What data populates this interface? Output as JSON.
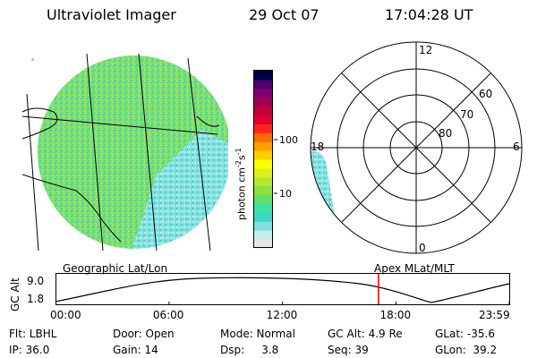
{
  "header": {
    "instrument": "Ultraviolet Imager",
    "date": "29 Oct 07",
    "time": "17:04:28 UT"
  },
  "colorbar": {
    "unit": "photon cm",
    "exp1": "-2",
    "mid": "s",
    "exp2": "-1",
    "ticks": [
      {
        "label": "100",
        "value": 100
      },
      {
        "label": "10",
        "value": 10
      }
    ],
    "colors": [
      "#e6e6e6",
      "#c8ecec",
      "#7fe0e0",
      "#3cd6c8",
      "#40e0a0",
      "#60e070",
      "#8ce040",
      "#b4e830",
      "#dcf020",
      "#ffff00",
      "#ffd000",
      "#ffa000",
      "#ff6a00",
      "#ff2020",
      "#e00030",
      "#c0003a",
      "#a00050",
      "#800070",
      "#500070",
      "#000040"
    ]
  },
  "polar": {
    "mlt_labels": {
      "top": "12",
      "left": "18",
      "right": "6",
      "bottom": "0"
    },
    "lat_labels": [
      "60",
      "70",
      "80"
    ]
  },
  "timeline": {
    "left_label": "Geographic Lat/Lon",
    "right_label": "Apex MLat/MLT",
    "axis_title": "GC Alt",
    "y_max": "9.0",
    "y_min": "1.8",
    "ticks": [
      "00:00",
      "06:00",
      "12:00",
      "18:00",
      "23:59"
    ],
    "marker_time_hours": 17.07
  },
  "info": {
    "col1": [
      "Flt: LBHL",
      "IP: 36.0"
    ],
    "col2": [
      "Door: Open",
      "Gain: 14"
    ],
    "col3": [
      "Mode: Normal",
      "Dsp:     3.8"
    ],
    "col4": [
      "GC Alt: 4.9 Re",
      "Seq: 39"
    ],
    "col5": [
      "GLat: -35.6",
      "GLon:  39.2"
    ]
  }
}
